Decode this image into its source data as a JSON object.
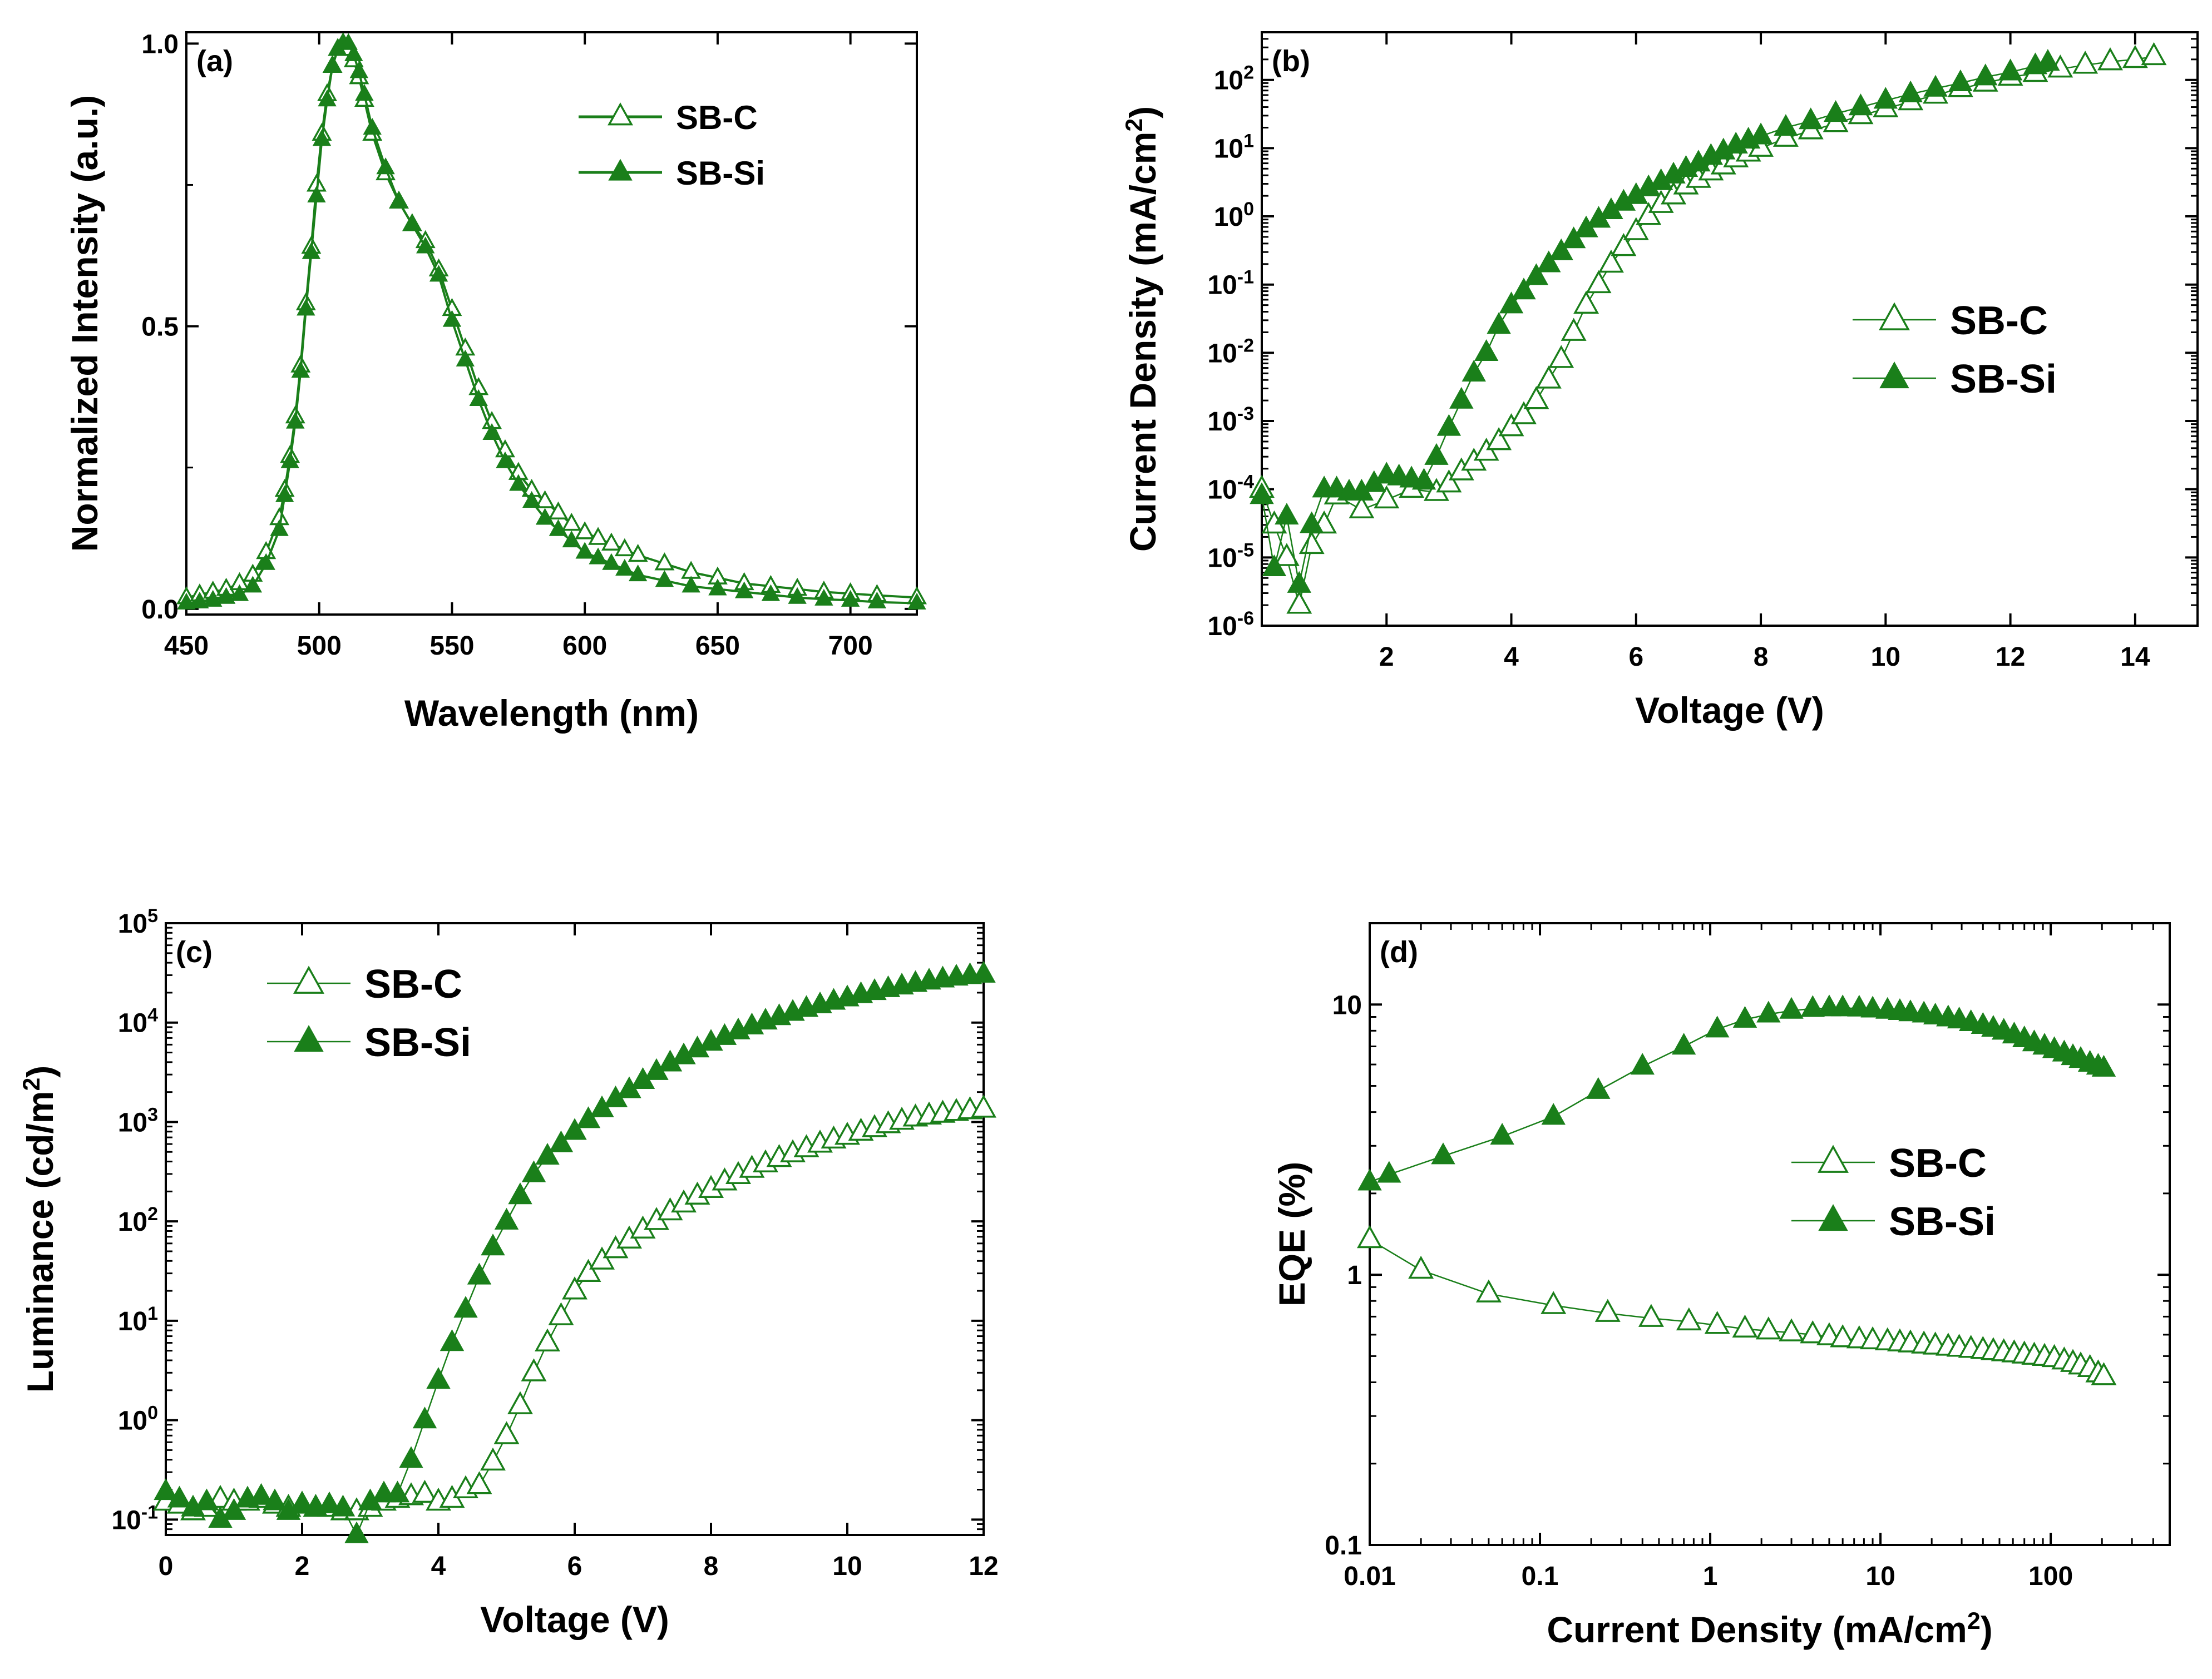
{
  "figure": {
    "colors": {
      "series": "#1a7f1a",
      "axis": "#000000",
      "background": "#ffffff"
    }
  },
  "chart_data": [
    {
      "id": "a",
      "type": "line",
      "panel_label": "(a)",
      "xlabel": "Wavelength (nm)",
      "ylabel": "Normalized Intensity (a.u.)",
      "xlim": [
        450,
        725
      ],
      "ylim": [
        -0.01,
        1.02
      ],
      "x_ticks": [
        450,
        500,
        550,
        600,
        650,
        700
      ],
      "x_tick_labels": [
        "450",
        "500",
        "550",
        "600",
        "650",
        "700"
      ],
      "y_ticks": [
        0,
        0.5,
        1.0
      ],
      "y_tick_labels": [
        "0.0",
        "0.5",
        "1.0"
      ],
      "legend_position": "top-right",
      "series": [
        {
          "name": "SB-C",
          "marker": "open-triangle",
          "x": [
            450,
            455,
            460,
            465,
            470,
            475,
            480,
            485,
            487,
            489,
            491,
            493,
            495,
            497,
            499,
            501,
            503,
            505,
            507,
            509,
            511,
            513,
            515,
            517,
            520,
            525,
            530,
            535,
            540,
            545,
            550,
            555,
            560,
            565,
            570,
            575,
            580,
            585,
            590,
            595,
            600,
            605,
            610,
            615,
            620,
            630,
            640,
            650,
            660,
            670,
            680,
            690,
            700,
            710,
            725
          ],
          "y": [
            0.02,
            0.025,
            0.03,
            0.035,
            0.045,
            0.06,
            0.1,
            0.16,
            0.21,
            0.27,
            0.34,
            0.43,
            0.54,
            0.64,
            0.75,
            0.84,
            0.91,
            0.96,
            0.99,
            1.0,
            0.99,
            0.97,
            0.94,
            0.9,
            0.84,
            0.77,
            0.72,
            0.68,
            0.65,
            0.6,
            0.53,
            0.46,
            0.39,
            0.33,
            0.28,
            0.24,
            0.21,
            0.19,
            0.17,
            0.15,
            0.135,
            0.125,
            0.115,
            0.105,
            0.095,
            0.08,
            0.065,
            0.055,
            0.045,
            0.04,
            0.035,
            0.03,
            0.027,
            0.024,
            0.02
          ]
        },
        {
          "name": "SB-Si",
          "marker": "filled-triangle",
          "x": [
            450,
            455,
            460,
            465,
            470,
            475,
            480,
            485,
            487,
            489,
            491,
            493,
            495,
            497,
            499,
            501,
            503,
            505,
            507,
            509,
            511,
            513,
            515,
            517,
            520,
            525,
            530,
            535,
            540,
            545,
            550,
            555,
            560,
            565,
            570,
            575,
            580,
            585,
            590,
            595,
            600,
            605,
            610,
            615,
            620,
            630,
            640,
            650,
            660,
            670,
            680,
            690,
            700,
            710,
            725
          ],
          "y": [
            0.01,
            0.012,
            0.015,
            0.02,
            0.025,
            0.04,
            0.08,
            0.14,
            0.2,
            0.26,
            0.33,
            0.42,
            0.53,
            0.63,
            0.73,
            0.83,
            0.9,
            0.96,
            0.99,
            1.0,
            1.0,
            0.98,
            0.95,
            0.91,
            0.85,
            0.78,
            0.72,
            0.68,
            0.64,
            0.59,
            0.51,
            0.44,
            0.37,
            0.31,
            0.26,
            0.22,
            0.19,
            0.16,
            0.14,
            0.12,
            0.1,
            0.09,
            0.08,
            0.07,
            0.06,
            0.05,
            0.04,
            0.035,
            0.03,
            0.025,
            0.02,
            0.017,
            0.015,
            0.012,
            0.01
          ]
        }
      ]
    },
    {
      "id": "b",
      "type": "line",
      "panel_label": "(b)",
      "xlabel": "Voltage (V)",
      "ylabel": "Current Density (mA/cm",
      "ylabel_sup": "2",
      "ylabel_end": ")",
      "xlim": [
        0,
        15
      ],
      "ylog": true,
      "ylim": [
        1e-06,
        500
      ],
      "x_ticks": [
        2,
        4,
        6,
        8,
        10,
        12,
        14
      ],
      "x_tick_labels": [
        "2",
        "4",
        "6",
        "8",
        "10",
        "12",
        "14"
      ],
      "y_ticks": [
        1e-06,
        1e-05,
        0.0001,
        0.001,
        0.01,
        0.1,
        1,
        10,
        100
      ],
      "y_tick_base": "10",
      "y_tick_exps": [
        "-6",
        "-5",
        "-4",
        "-3",
        "-2",
        "-1",
        "0",
        "1",
        "2"
      ],
      "legend_position": "center-right",
      "series": [
        {
          "name": "SB-C",
          "marker": "open-triangle",
          "x": [
            0,
            0.2,
            0.4,
            0.6,
            0.8,
            1.0,
            1.2,
            1.6,
            2.0,
            2.4,
            2.8,
            3.0,
            3.2,
            3.4,
            3.6,
            3.8,
            4.0,
            4.2,
            4.4,
            4.6,
            4.8,
            5.0,
            5.2,
            5.4,
            5.6,
            5.8,
            6.0,
            6.2,
            6.4,
            6.6,
            6.8,
            7.0,
            7.2,
            7.4,
            7.6,
            7.8,
            8.0,
            8.4,
            8.8,
            9.2,
            9.6,
            10.0,
            10.4,
            10.8,
            11.2,
            11.6,
            12.0,
            12.4,
            12.8,
            13.2,
            13.6,
            14.0,
            14.3
          ],
          "y": [
            0.0001,
            3e-05,
            1e-05,
            2e-06,
            1.5e-05,
            3e-05,
            8e-05,
            5e-05,
            7e-05,
            0.0001,
            9e-05,
            0.00012,
            0.00018,
            0.00025,
            0.00035,
            0.0005,
            0.0008,
            0.0012,
            0.002,
            0.004,
            0.008,
            0.02,
            0.05,
            0.1,
            0.2,
            0.35,
            0.6,
            1.0,
            1.5,
            2.0,
            2.8,
            3.5,
            4.5,
            5.5,
            7.0,
            8.5,
            10,
            14,
            18,
            23,
            30,
            38,
            48,
            60,
            75,
            90,
            110,
            125,
            145,
            165,
            185,
            200,
            220
          ]
        },
        {
          "name": "SB-Si",
          "marker": "filled-triangle",
          "x": [
            0,
            0.2,
            0.4,
            0.6,
            0.8,
            1.0,
            1.2,
            1.4,
            1.6,
            1.8,
            2.0,
            2.2,
            2.4,
            2.6,
            2.8,
            3.0,
            3.2,
            3.4,
            3.6,
            3.8,
            4.0,
            4.2,
            4.4,
            4.6,
            4.8,
            5.0,
            5.2,
            5.4,
            5.6,
            5.8,
            6.0,
            6.2,
            6.4,
            6.6,
            6.8,
            7.0,
            7.2,
            7.4,
            7.6,
            7.8,
            8.0,
            8.4,
            8.8,
            9.2,
            9.6,
            10.0,
            10.4,
            10.8,
            11.2,
            11.6,
            12.0,
            12.4,
            12.6
          ],
          "y": [
            8e-05,
            7e-06,
            4e-05,
            4e-06,
            3e-05,
            0.0001,
            0.0001,
            9e-05,
            9e-05,
            0.00012,
            0.00016,
            0.00015,
            0.00014,
            0.00013,
            0.0003,
            0.0008,
            0.002,
            0.005,
            0.01,
            0.025,
            0.05,
            0.08,
            0.13,
            0.2,
            0.3,
            0.45,
            0.65,
            0.9,
            1.2,
            1.6,
            2.0,
            2.6,
            3.2,
            4.0,
            5.0,
            6.0,
            7.5,
            9.0,
            11,
            13,
            15,
            20,
            25,
            32,
            40,
            50,
            62,
            75,
            90,
            110,
            130,
            160,
            180
          ]
        }
      ]
    },
    {
      "id": "c",
      "type": "line",
      "panel_label": "(c)",
      "xlabel": "Voltage (V)",
      "ylabel": "Luminance (cd/m",
      "ylabel_sup": "2",
      "ylabel_end": ")",
      "xlim": [
        0,
        12
      ],
      "ylog": true,
      "ylim": [
        0.07,
        100000.0
      ],
      "x_ticks": [
        0,
        2,
        4,
        6,
        8,
        10,
        12
      ],
      "x_tick_labels": [
        "0",
        "2",
        "4",
        "6",
        "8",
        "10",
        "12"
      ],
      "y_ticks": [
        0.1,
        1,
        10,
        100,
        1000,
        10000,
        100000
      ],
      "y_tick_base": "10",
      "y_tick_exps": [
        "-1",
        "0",
        "1",
        "2",
        "3",
        "4",
        "5"
      ],
      "legend_position": "top-left",
      "series": [
        {
          "name": "SB-C",
          "marker": "open-triangle",
          "x": [
            0,
            0.2,
            0.4,
            0.6,
            0.8,
            1.0,
            1.2,
            1.4,
            1.6,
            1.8,
            2.0,
            2.2,
            2.4,
            2.6,
            2.8,
            3.0,
            3.2,
            3.4,
            3.6,
            3.8,
            4.0,
            4.2,
            4.4,
            4.6,
            4.8,
            5.0,
            5.2,
            5.4,
            5.6,
            5.8,
            6.0,
            6.2,
            6.4,
            6.6,
            6.8,
            7.0,
            7.2,
            7.4,
            7.6,
            7.8,
            8.0,
            8.2,
            8.4,
            8.6,
            8.8,
            9.0,
            9.2,
            9.4,
            9.6,
            9.8,
            10.0,
            10.2,
            10.4,
            10.6,
            10.8,
            11.0,
            11.2,
            11.4,
            11.6,
            11.8,
            12.0
          ],
          "y": [
            0.15,
            0.14,
            0.12,
            0.13,
            0.16,
            0.15,
            0.15,
            0.16,
            0.14,
            0.13,
            0.14,
            0.13,
            0.13,
            0.12,
            0.12,
            0.13,
            0.15,
            0.16,
            0.17,
            0.18,
            0.15,
            0.16,
            0.2,
            0.22,
            0.38,
            0.7,
            1.4,
            3.0,
            6,
            11,
            20,
            30,
            40,
            52,
            65,
            82,
            100,
            125,
            150,
            180,
            210,
            250,
            290,
            335,
            380,
            430,
            480,
            540,
            600,
            660,
            720,
            790,
            860,
            940,
            1020,
            1100,
            1150,
            1200,
            1250,
            1300,
            1350
          ]
        },
        {
          "name": "SB-Si",
          "marker": "filled-triangle",
          "x": [
            0,
            0.2,
            0.4,
            0.6,
            0.8,
            1.0,
            1.2,
            1.4,
            1.6,
            1.8,
            2.0,
            2.2,
            2.4,
            2.6,
            2.8,
            3.0,
            3.2,
            3.4,
            3.6,
            3.8,
            4.0,
            4.2,
            4.4,
            4.6,
            4.8,
            5.0,
            5.2,
            5.4,
            5.6,
            5.8,
            6.0,
            6.2,
            6.4,
            6.6,
            6.8,
            7.0,
            7.2,
            7.4,
            7.6,
            7.8,
            8.0,
            8.2,
            8.4,
            8.6,
            8.8,
            9.0,
            9.2,
            9.4,
            9.6,
            9.8,
            10.0,
            10.2,
            10.4,
            10.6,
            10.8,
            11.0,
            11.2,
            11.4,
            11.6,
            11.8,
            12.0
          ],
          "y": [
            0.19,
            0.16,
            0.13,
            0.15,
            0.1,
            0.12,
            0.16,
            0.17,
            0.15,
            0.12,
            0.14,
            0.13,
            0.14,
            0.13,
            0.07,
            0.15,
            0.18,
            0.18,
            0.4,
            1.0,
            2.5,
            6,
            13,
            28,
            55,
            100,
            180,
            300,
            450,
            600,
            800,
            1050,
            1350,
            1700,
            2100,
            2600,
            3200,
            3900,
            4600,
            5400,
            6300,
            7200,
            8200,
            9200,
            10300,
            11400,
            12600,
            13800,
            15000,
            16300,
            17600,
            19000,
            20400,
            21800,
            23200,
            24600,
            26000,
            27300,
            28500,
            29500,
            30500
          ]
        }
      ]
    },
    {
      "id": "d",
      "type": "line",
      "panel_label": "(d)",
      "xlabel": "Current Density (mA/cm",
      "xlabel_sup": "2",
      "xlabel_end": ")",
      "ylabel": "EQE (%)",
      "xlog": true,
      "ylog": true,
      "xlim": [
        0.01,
        500
      ],
      "ylim": [
        0.1,
        20
      ],
      "x_ticks": [
        0.01,
        0.1,
        1,
        10,
        100
      ],
      "x_tick_labels": [
        "0.01",
        "0.1",
        "1",
        "10",
        "100"
      ],
      "y_ticks": [
        0.1,
        1,
        10
      ],
      "y_tick_labels": [
        "0.1",
        "1",
        "10"
      ],
      "legend_position": "center-right",
      "series": [
        {
          "name": "SB-C",
          "marker": "open-triangle",
          "x": [
            0.01,
            0.02,
            0.05,
            0.12,
            0.25,
            0.45,
            0.75,
            1.1,
            1.6,
            2.2,
            3.0,
            4.0,
            5.0,
            6.0,
            7.5,
            9.0,
            11,
            13,
            15,
            18,
            21,
            25,
            29,
            34,
            40,
            46,
            53,
            61,
            70,
            80,
            92,
            105,
            120,
            135,
            150,
            170,
            190,
            205
          ],
          "y": [
            1.35,
            1.04,
            0.85,
            0.77,
            0.72,
            0.69,
            0.67,
            0.65,
            0.63,
            0.62,
            0.61,
            0.6,
            0.59,
            0.58,
            0.575,
            0.57,
            0.565,
            0.56,
            0.555,
            0.55,
            0.545,
            0.54,
            0.535,
            0.53,
            0.525,
            0.52,
            0.515,
            0.51,
            0.505,
            0.5,
            0.495,
            0.49,
            0.48,
            0.47,
            0.46,
            0.45,
            0.43,
            0.42
          ]
        },
        {
          "name": "SB-Si",
          "marker": "filled-triangle",
          "x": [
            0.01,
            0.013,
            0.027,
            0.06,
            0.12,
            0.22,
            0.4,
            0.7,
            1.1,
            1.6,
            2.2,
            3.0,
            4.0,
            5.0,
            6.0,
            7.5,
            9.0,
            11,
            13,
            15,
            18,
            21,
            25,
            29,
            34,
            40,
            46,
            53,
            61,
            70,
            80,
            92,
            105,
            120,
            135,
            150,
            170,
            190,
            205
          ],
          "y": [
            2.2,
            2.35,
            2.75,
            3.25,
            3.85,
            4.8,
            5.9,
            7.0,
            8.1,
            8.8,
            9.2,
            9.5,
            9.65,
            9.7,
            9.7,
            9.68,
            9.6,
            9.5,
            9.4,
            9.3,
            9.2,
            9.05,
            8.9,
            8.75,
            8.55,
            8.35,
            8.15,
            7.95,
            7.7,
            7.45,
            7.2,
            7.0,
            6.8,
            6.6,
            6.4,
            6.25,
            6.05,
            5.9,
            5.8
          ]
        }
      ]
    }
  ]
}
